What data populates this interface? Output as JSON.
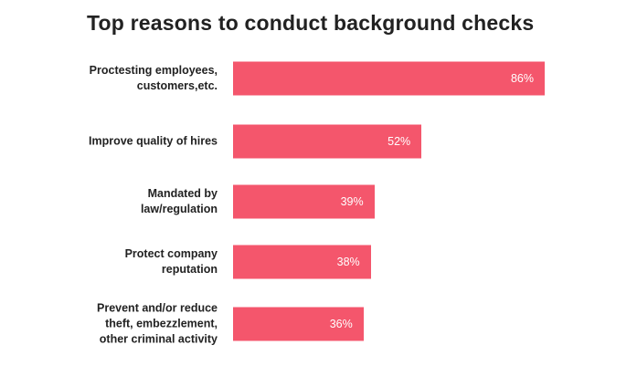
{
  "chart_data": {
    "type": "bar",
    "orientation": "horizontal",
    "title": "Top reasons to conduct background checks",
    "categories": [
      "Proctesting employees,\ncustomers,etc.",
      "Improve quality of hires",
      "Mandated by\nlaw/regulation",
      "Protect company\nreputation",
      "Prevent and/or reduce\ntheft, embezzlement,\nother criminal activity"
    ],
    "values": [
      86,
      52,
      39,
      38,
      36
    ],
    "value_labels": [
      "86%",
      "52%",
      "39%",
      "38%",
      "36%"
    ],
    "color": "#f4566c"
  }
}
